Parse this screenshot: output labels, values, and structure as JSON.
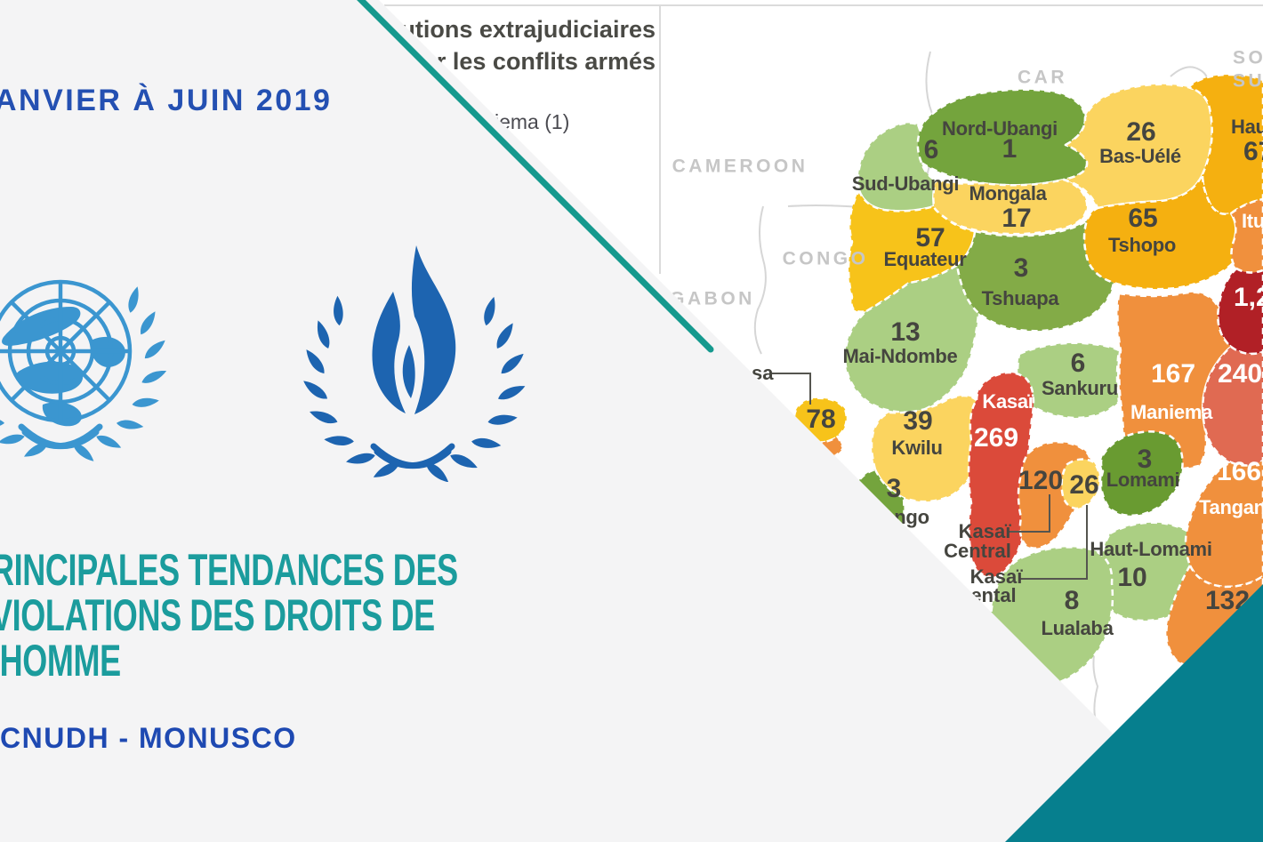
{
  "slide": {
    "period": "ANVIER À JUIN 2019",
    "title_line1": "RINCIPALES TENDANCES DES",
    "title_line2": "VIOLATIONS DES DROITS DE",
    "title_line3": "’HOMME",
    "org": "CNUDH - MONUSCO"
  },
  "legend": {
    "title_line1": "écutions extrajudiciaires",
    "title_line2": "par les conflits armés",
    "entry": "iema (1)"
  },
  "countries": [
    {
      "id": "car",
      "label": "CAR"
    },
    {
      "id": "cameroon",
      "label": "CAMEROON"
    },
    {
      "id": "congo",
      "label": "CONGO"
    },
    {
      "id": "gabon",
      "label": "GABON"
    },
    {
      "id": "south_sudan_line1",
      "label": "SOU"
    },
    {
      "id": "south_sudan_line2",
      "label": "SU"
    }
  ],
  "provinces": [
    {
      "id": "sudUbangi",
      "name": "Sud-Ubangi",
      "value": "6"
    },
    {
      "id": "nordUbangi",
      "name": "Nord-Ubangi",
      "value": "1"
    },
    {
      "id": "mongala",
      "name": "Mongala",
      "value": "17"
    },
    {
      "id": "basUele",
      "name": "Bas-Uélé",
      "value": "26"
    },
    {
      "id": "hautUele",
      "name": "Haut",
      "value": "67"
    },
    {
      "id": "equateur",
      "name": "Equateur",
      "value": "57"
    },
    {
      "id": "tshopo",
      "name": "Tshopo",
      "value": "65"
    },
    {
      "id": "tshuapa",
      "name": "Tshuapa",
      "value": "3"
    },
    {
      "id": "ituri",
      "name": "Itu",
      "value": ""
    },
    {
      "id": "nordKivu",
      "name": "",
      "value": "1,2"
    },
    {
      "id": "maiNdombe",
      "name": "Mai-Ndombe",
      "value": "13"
    },
    {
      "id": "sankuru",
      "name": "Sankuru",
      "value": "6"
    },
    {
      "id": "maniema",
      "name": "Maniema",
      "value": "167"
    },
    {
      "id": "sudKivu",
      "name": "",
      "value": "240"
    },
    {
      "id": "kinshasa",
      "name": "",
      "value": "78"
    },
    {
      "id": "kongoCentral",
      "name": "",
      "value": ""
    },
    {
      "id": "kwilu",
      "name": "Kwilu",
      "value": "39"
    },
    {
      "id": "kwango",
      "name": "ngo",
      "value": "3"
    },
    {
      "id": "kasai",
      "name": "Kasaï",
      "value": "269"
    },
    {
      "id": "kasaiCentral",
      "name": "",
      "value": "120"
    },
    {
      "id": "kasaiOriental",
      "name": "",
      "value": "26"
    },
    {
      "id": "lomami",
      "name": "Lomami",
      "value": "3"
    },
    {
      "id": "hautLomami",
      "name": "Haut-Lomami",
      "value": "10"
    },
    {
      "id": "lualaba",
      "name": "Lualaba",
      "value": "8"
    },
    {
      "id": "tanganyika",
      "name": "Tanganyi",
      "value": "166"
    },
    {
      "id": "hautKatanga",
      "name": "",
      "value": "132"
    }
  ],
  "external_labels": [
    {
      "id": "kinshasa_callout",
      "text": "sa"
    },
    {
      "id": "kasai_central_callout_line1",
      "text": "Kasaï"
    },
    {
      "id": "kasai_central_callout_line2",
      "text": "Central"
    },
    {
      "id": "kasai_oriental_callout_line1",
      "text": "Kasaï"
    },
    {
      "id": "kasai_oriental_callout_line2",
      "text": "ental"
    }
  ],
  "colors": {
    "slide_bg": "#F4F4F5",
    "teal_stripe": "#15998E",
    "teal_corner": "#067F8E",
    "title_teal": "#1B9C9D",
    "blue_text": "#2450B2",
    "un_blue": "#3B96D0",
    "ohchr_blue": "#1D64B0",
    "label_dark": "#45453F",
    "label_light": "#FFFFFF",
    "country_gray": "#C6C6C6",
    "line_gray": "#DBDBDB",
    "callout_gray": "#55554F",
    "fills": {
      "pale": "#FBD45F",
      "gold": "#F7C31A",
      "amber": "#F5B010",
      "lightGreen": "#ABCF83",
      "medGreen": "#74A43D",
      "oliveGreen": "#83AB47",
      "darkGreen": "#699B31",
      "orange": "#F0903D",
      "red": "#DB4A3A",
      "salmon": "#E06A52",
      "darkRed": "#B12026"
    }
  }
}
